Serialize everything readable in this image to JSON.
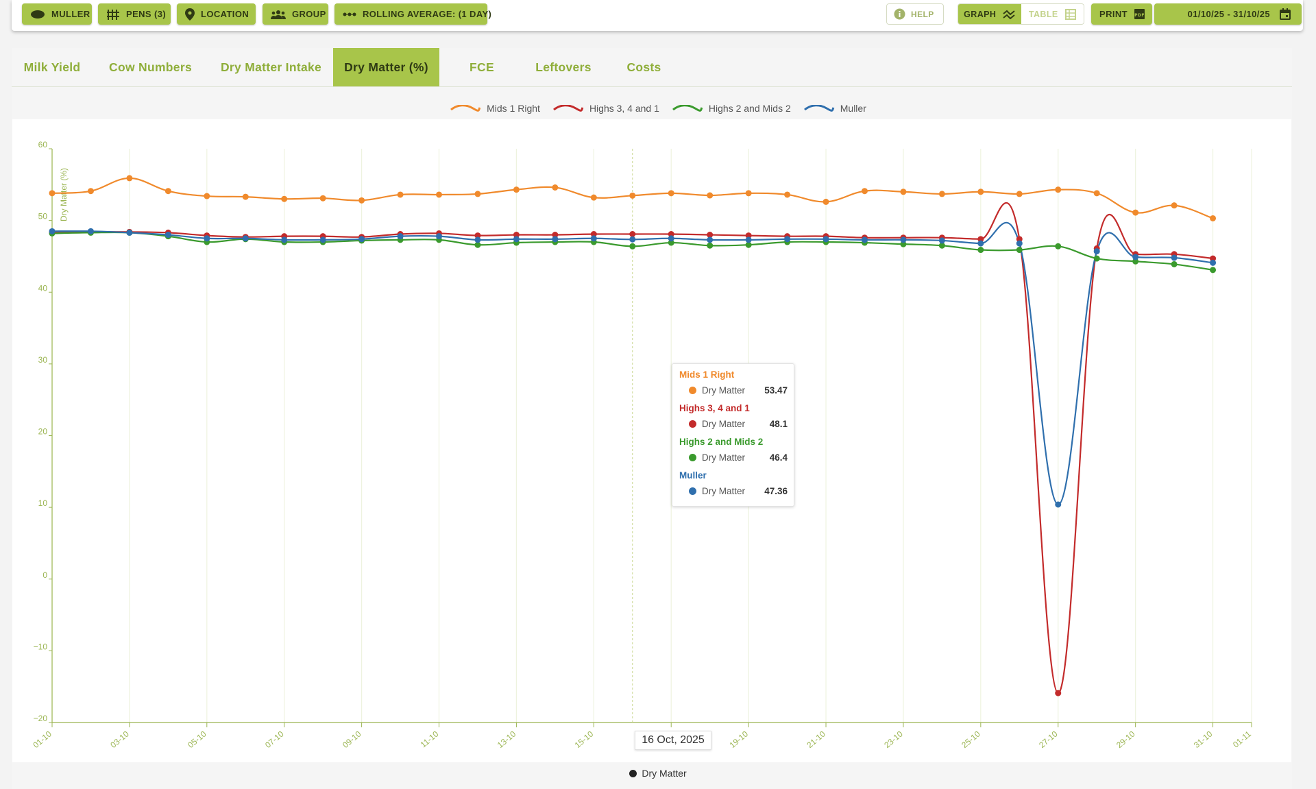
{
  "toolbar": {
    "farm_label": "MULLER",
    "pens_label": "PENS (3)",
    "location_label": "LOCATION",
    "group_label": "GROUP",
    "rolling_label": "ROLLING AVERAGE: (1 DAY)",
    "help_label": "HELP",
    "graph_label": "GRAPH",
    "table_label": "TABLE",
    "print_label": "PRINT",
    "date_range": "01/10/25 - 31/10/25"
  },
  "tabs": [
    "Milk Yield",
    "Cow Numbers",
    "Dry Matter Intake",
    "Dry Matter (%)",
    "FCE",
    "Leftovers",
    "Costs"
  ],
  "active_tab": "Dry Matter (%)",
  "tooltip": {
    "date": "16 Oct, 2025",
    "entries": [
      {
        "series": "Mids 1 Right",
        "metric": "Dry Matter",
        "value": "53.47"
      },
      {
        "series": "Highs 3, 4 and 1",
        "metric": "Dry Matter",
        "value": "48.1"
      },
      {
        "series": "Highs 2 and Mids 2",
        "metric": "Dry Matter",
        "value": "46.4"
      },
      {
        "series": "Muller",
        "metric": "Dry Matter",
        "value": "47.36"
      }
    ]
  },
  "bottom_legend": "Dry Matter",
  "colors": {
    "accent": "#a8c54a",
    "accent_text": "#8fae3a",
    "orange": "#f08a2c",
    "red": "#c32b2b",
    "green": "#3a9a2d",
    "blue": "#2f6fad"
  },
  "chart_data": {
    "type": "line",
    "ylabel": "Dry Matter (%)",
    "xlabel": "",
    "ylim": [
      -20,
      60
    ],
    "yticks": [
      -20,
      -10,
      0,
      10,
      20,
      30,
      40,
      50,
      60
    ],
    "xlim": [
      "2025-10-01",
      "2025-11-01"
    ],
    "xticks": [
      "01-10",
      "03-10",
      "05-10",
      "07-10",
      "09-10",
      "11-10",
      "13-10",
      "15-10",
      "17-10",
      "19-10",
      "21-10",
      "23-10",
      "25-10",
      "27-10",
      "29-10",
      "31-10",
      "01-11"
    ],
    "grid": true,
    "legend_position": "top-center",
    "x": [
      "2025-10-01",
      "2025-10-02",
      "2025-10-03",
      "2025-10-04",
      "2025-10-05",
      "2025-10-06",
      "2025-10-07",
      "2025-10-08",
      "2025-10-09",
      "2025-10-10",
      "2025-10-11",
      "2025-10-12",
      "2025-10-13",
      "2025-10-14",
      "2025-10-15",
      "2025-10-16",
      "2025-10-17",
      "2025-10-18",
      "2025-10-19",
      "2025-10-20",
      "2025-10-21",
      "2025-10-22",
      "2025-10-23",
      "2025-10-24",
      "2025-10-25",
      "2025-10-26",
      "2025-10-27",
      "2025-10-28",
      "2025-10-29",
      "2025-10-30",
      "2025-10-31"
    ],
    "series": [
      {
        "name": "Mids 1 Right",
        "color": "#f08a2c",
        "values": [
          53.8,
          54.1,
          55.9,
          54.1,
          53.4,
          53.3,
          53.0,
          53.1,
          52.8,
          53.6,
          53.6,
          53.7,
          54.3,
          54.6,
          53.2,
          53.47,
          53.8,
          53.5,
          53.8,
          53.6,
          52.6,
          54.1,
          54.0,
          53.7,
          54.0,
          53.7,
          54.3,
          53.8,
          51.1,
          52.1,
          50.3
        ]
      },
      {
        "name": "Highs 3, 4 and 1",
        "color": "#c32b2b",
        "values": [
          48.3,
          48.4,
          48.4,
          48.3,
          47.9,
          47.7,
          47.8,
          47.8,
          47.7,
          48.1,
          48.2,
          47.9,
          48.0,
          48.0,
          48.1,
          48.1,
          48.1,
          48.0,
          47.9,
          47.8,
          47.8,
          47.6,
          47.6,
          47.6,
          47.4,
          47.4,
          -15.9,
          46.1,
          45.3,
          45.3,
          44.7
        ]
      },
      {
        "name": "Highs 2 and Mids 2",
        "color": "#3a9a2d",
        "values": [
          48.2,
          48.3,
          48.3,
          47.8,
          47.0,
          47.4,
          47.0,
          47.0,
          47.2,
          47.3,
          47.3,
          46.6,
          46.9,
          47.0,
          47.0,
          46.4,
          46.9,
          46.5,
          46.6,
          47.0,
          47.0,
          46.9,
          46.7,
          46.5,
          45.9,
          45.9,
          46.4,
          44.7,
          44.3,
          43.9,
          43.1
        ]
      },
      {
        "name": "Muller",
        "color": "#2f6fad",
        "values": [
          48.5,
          48.5,
          48.3,
          48.0,
          47.5,
          47.5,
          47.3,
          47.3,
          47.4,
          47.8,
          47.8,
          47.3,
          47.4,
          47.4,
          47.5,
          47.36,
          47.5,
          47.3,
          47.3,
          47.4,
          47.4,
          47.3,
          47.3,
          47.2,
          46.8,
          46.8,
          10.4,
          45.7,
          44.9,
          44.8,
          44.1
        ]
      }
    ]
  }
}
